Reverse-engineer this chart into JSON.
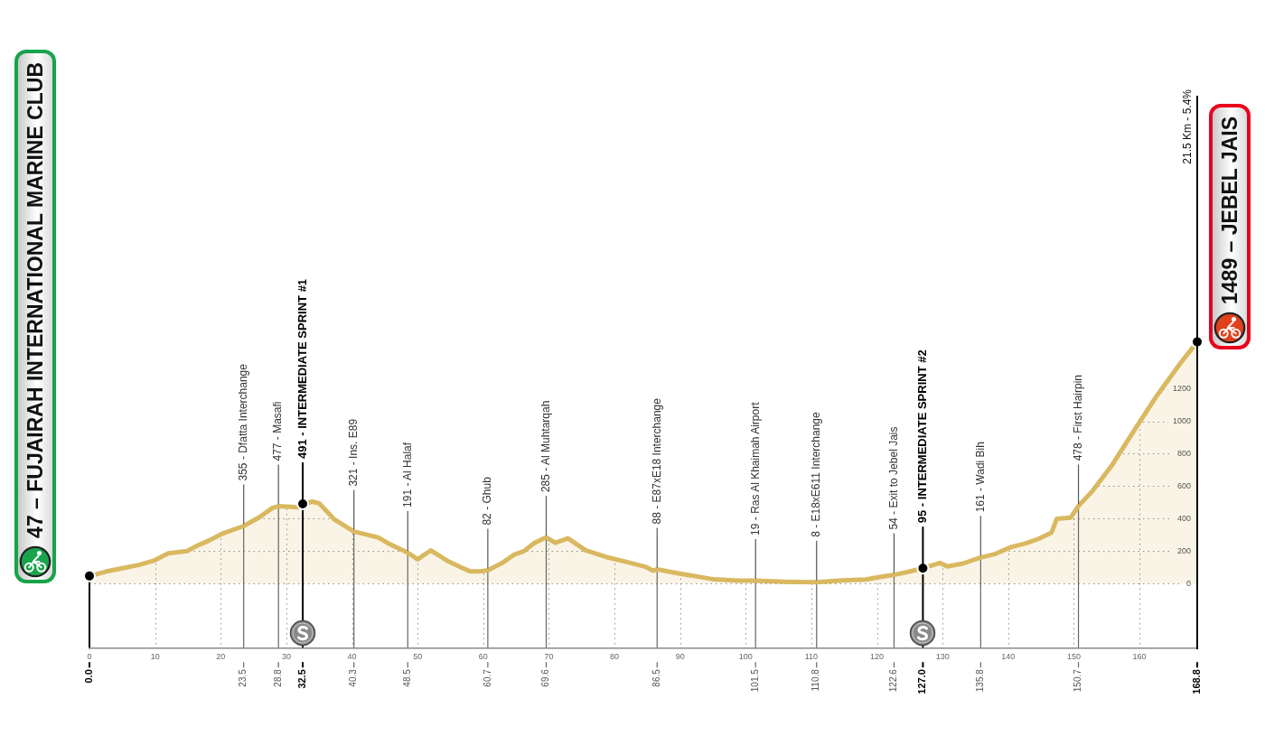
{
  "chart_data": {
    "type": "area",
    "xlim": [
      0,
      168.8
    ],
    "xticks": [
      0,
      10,
      20,
      30,
      40,
      50,
      60,
      70,
      80,
      90,
      100,
      110,
      120,
      130,
      140,
      150,
      160
    ],
    "ylim": [
      -400,
      3000
    ],
    "yticks": [
      0,
      200,
      400,
      600,
      800,
      1000,
      1200
    ],
    "grid": true,
    "series": [
      {
        "color": "#d9b860",
        "x": [
          0,
          2.6,
          5.2,
          7.5,
          9.8,
          12.0,
          14.9,
          16.5,
          18.2,
          20.1,
          23.5,
          25.9,
          27.9,
          28.8,
          31.8,
          32.5,
          34.0,
          35.0,
          37.3,
          40.3,
          44.0,
          45.4,
          48.5,
          50.0,
          52.0,
          54.5,
          56.4,
          58.0,
          59.5,
          60.7,
          62.8,
          64.8,
          66.2,
          67.8,
          69.6,
          71.0,
          72.9,
          75.6,
          78.8,
          81.5,
          84.7,
          85.9,
          86.5,
          89.8,
          95.2,
          98.9,
          101.5,
          106.0,
          110.8,
          114.6,
          118.3,
          119.6,
          122.6,
          124.6,
          127.0,
          129.6,
          130.7,
          133.1,
          135.8,
          137.8,
          140.5,
          142.6,
          144.7,
          146.6,
          147.4,
          149.5,
          150.7,
          152.9,
          155.8,
          159.5,
          162.6,
          166.2,
          168.8
        ],
        "values": [
          47,
          75,
          96,
          115,
          141,
          187,
          201,
          235,
          265,
          305,
          355,
          409,
          467,
          477,
          470,
          491,
          505,
          495,
          396,
          321,
          285,
          251,
          191,
          150,
          205,
          141,
          104,
          76,
          75,
          82,
          125,
          181,
          200,
          251,
          285,
          251,
          279,
          205,
          163,
          137,
          104,
          80,
          88,
          63,
          26,
          18,
          19,
          12,
          8,
          20,
          25,
          35,
          54,
          71,
          95,
          128,
          106,
          124,
          161,
          180,
          226,
          247,
          277,
          315,
          400,
          406,
          478,
          574,
          729,
          963,
          1155,
          1356,
          1489
        ]
      },
      {
        "type": "scatter",
        "color": "#000000",
        "marker": "circle",
        "x": [
          0,
          32.5,
          127.0,
          168.8
        ],
        "values": [
          47,
          491,
          95,
          1489
        ]
      }
    ],
    "ref_lines": [
      {
        "axis": "x",
        "value": 0,
        "label": "0.0",
        "color": "#000000"
      },
      {
        "axis": "x",
        "value": 23.5,
        "label": "23.5",
        "color": "#666666"
      },
      {
        "axis": "x",
        "value": 28.8,
        "label": "28.8",
        "color": "#666666"
      },
      {
        "axis": "x",
        "value": 32.5,
        "label": "32.5",
        "color": "#000000"
      },
      {
        "axis": "x",
        "value": 40.3,
        "label": "40.3",
        "color": "#666666"
      },
      {
        "axis": "x",
        "value": 48.5,
        "label": "48.5",
        "color": "#666666"
      },
      {
        "axis": "x",
        "value": 60.7,
        "label": "60.7",
        "color": "#666666"
      },
      {
        "axis": "x",
        "value": 69.6,
        "label": "69.6",
        "color": "#666666"
      },
      {
        "axis": "x",
        "value": 86.5,
        "label": "86.5",
        "color": "#666666"
      },
      {
        "axis": "x",
        "value": 101.5,
        "label": "101.5",
        "color": "#666666"
      },
      {
        "axis": "x",
        "value": 110.8,
        "label": "110.8",
        "color": "#666666"
      },
      {
        "axis": "x",
        "value": 122.6,
        "label": "122.6",
        "color": "#666666"
      },
      {
        "axis": "x",
        "value": 127.0,
        "label": "127.0",
        "color": "#000000"
      },
      {
        "axis": "x",
        "value": 135.8,
        "label": "135.8",
        "color": "#666666"
      },
      {
        "axis": "x",
        "value": 150.7,
        "label": "150.7",
        "color": "#666666"
      },
      {
        "axis": "x",
        "value": 168.8,
        "label": "168.8",
        "color": "#000000"
      }
    ],
    "annotations": [
      "47 – FUJAIRAH INTERNATIONAL MARINE CLUB",
      {
        "text": "355 - Dfatta Interchange",
        "x": 23.5,
        "y": 355
      },
      {
        "text": "477 - Masafi",
        "x": 28.8,
        "y": 477
      },
      {
        "text": "491 - INTERMEDIATE SPRINT #1",
        "x": 32.5,
        "y": 491
      },
      {
        "text": "321 - Ins. E89",
        "x": 40.3,
        "y": 321
      },
      {
        "text": "191 - Al Halaf",
        "x": 48.5,
        "y": 191
      },
      {
        "text": "82 - Ghub",
        "x": 60.7,
        "y": 82
      },
      {
        "text": "285 - Al Muhtarqah",
        "x": 69.6,
        "y": 285
      },
      {
        "text": "88 - E87xE18 Interchange",
        "x": 86.5,
        "y": 88
      },
      {
        "text": "19 - Ras Al Khaimah Airport",
        "x": 101.5,
        "y": 19
      },
      {
        "text": "8 - E18xE611 Interchange",
        "x": 110.8,
        "y": 8
      },
      {
        "text": "54 - Exit to Jebel Jais",
        "x": 122.6,
        "y": 54
      },
      {
        "text": "95 - INTERMEDIATE SPRINT #2",
        "x": 127.0,
        "y": 95
      },
      {
        "text": "161 - Wadi Bih",
        "x": 135.8,
        "y": 161
      },
      {
        "text": "478 - First Hairpin",
        "x": 150.7,
        "y": 478
      },
      "1489 – JEBEL JAIS",
      "21.5 Km - 5.4%"
    ]
  }
}
